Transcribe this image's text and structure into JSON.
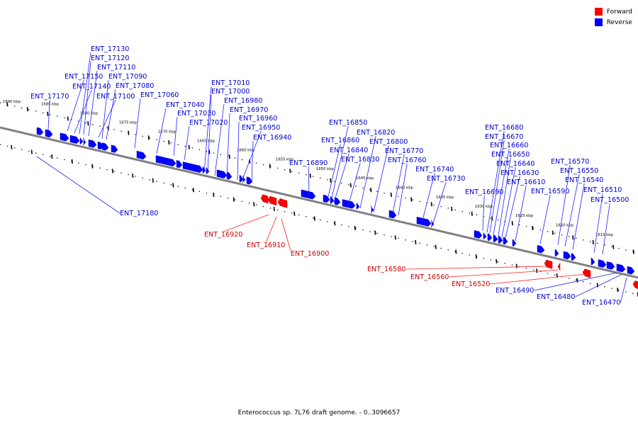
{
  "legend": [
    {
      "label": "Forward",
      "color": "#ff0000"
    },
    {
      "label": "Reverse",
      "color": "#0000ff"
    }
  ],
  "caption": "Enterococcus sp. 7L76 draft genome. - 0..3096657",
  "colors": {
    "forward": "#ff0000",
    "reverse": "#0000ff",
    "forward_label": "#cc0000",
    "reverse_label": "#0000cc",
    "backbone": "#808080"
  },
  "scale_labels": [
    "1690 kbp",
    "1685 kbp",
    "1680 kbp",
    "1675 kbp",
    "1670 kbp",
    "1665 kbp",
    "1660 kbp",
    "1655 kbp",
    "1650 kbp",
    "1645 kbp",
    "1640 kbp",
    "1635 kbp",
    "1630 kbp",
    "1625 kbp",
    "1620 kbp",
    "1615 kbp"
  ],
  "reverse_genes": [
    "ENT_17180",
    "ENT_17170",
    "ENT_17150",
    "ENT_17140",
    "ENT_17130",
    "ENT_17120",
    "ENT_17110",
    "ENT_17100",
    "ENT_17090",
    "ENT_17080",
    "ENT_17060",
    "ENT_17040",
    "ENT_17030",
    "ENT_17020",
    "ENT_17010",
    "ENT_17000",
    "ENT_16980",
    "ENT_16970",
    "ENT_16960",
    "ENT_16950",
    "ENT_16940",
    "ENT_16890",
    "ENT_16860",
    "ENT_16850",
    "ENT_16840",
    "ENT_16830",
    "ENT_16820",
    "ENT_16800",
    "ENT_16770",
    "ENT_16760",
    "ENT_16740",
    "ENT_16730",
    "ENT_16690",
    "ENT_16680",
    "ENT_16670",
    "ENT_16660",
    "ENT_16650",
    "ENT_16640",
    "ENT_16630",
    "ENT_16610",
    "ENT_16590",
    "ENT_16570",
    "ENT_16550",
    "ENT_16540",
    "ENT_16510",
    "ENT_16500",
    "ENT_16490",
    "ENT_16480",
    "ENT_16470"
  ],
  "forward_genes": [
    "ENT_16920",
    "ENT_16910",
    "ENT_16900",
    "ENT_16580",
    "ENT_16560",
    "ENT_16520"
  ]
}
